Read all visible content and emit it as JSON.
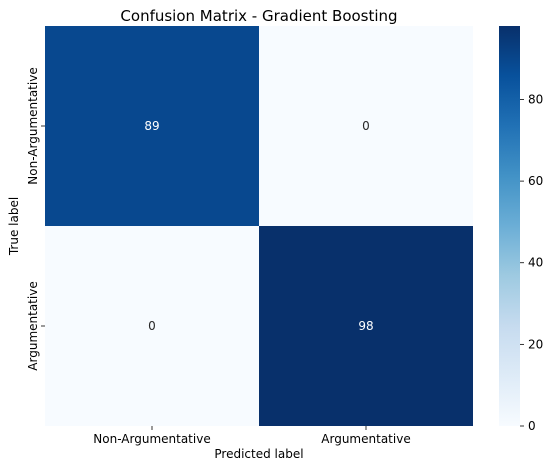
{
  "chart_data": {
    "type": "heatmap",
    "title": "Confusion Matrix - Gradient Boosting",
    "xlabel": "Predicted label",
    "ylabel": "True label",
    "x_categories": [
      "Non-Argumentative",
      "Argumentative"
    ],
    "y_categories": [
      "Non-Argumentative",
      "Argumentative"
    ],
    "values": [
      [
        89,
        0
      ],
      [
        0,
        98
      ]
    ],
    "colorbar": {
      "ticks": [
        0,
        20,
        40,
        60,
        80
      ],
      "range": [
        0,
        98
      ],
      "colormap": "Blues",
      "low_color": "#f7fbff",
      "high_color": "#08306b"
    },
    "annotations": true,
    "grid": false
  }
}
